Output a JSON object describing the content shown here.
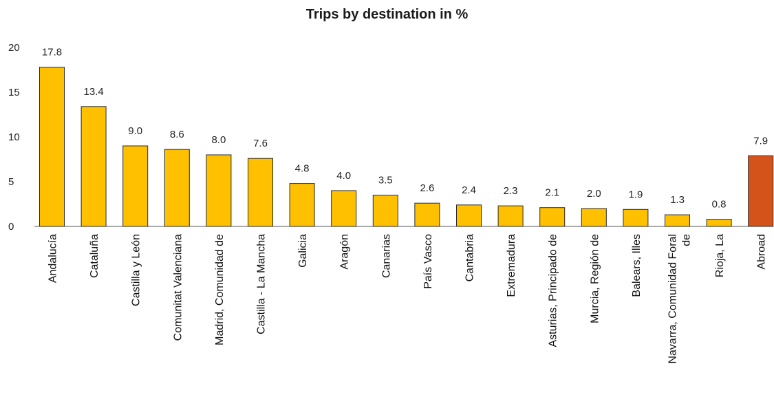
{
  "chart_data": {
    "type": "bar",
    "title": "Trips by destination in %",
    "xlabel": "",
    "ylabel": "",
    "ylim": [
      0,
      20
    ],
    "yticks": [
      0,
      5,
      10,
      15,
      20
    ],
    "grid": false,
    "categories": [
      "Andalucía",
      "Cataluña",
      "Castilla y León",
      "Comunitat Valenciana",
      "Madrid, Comunidad de",
      "Castilla - La Mancha",
      "Galicia",
      "Aragón",
      "Canarias",
      "País Vasco",
      "Cantabria",
      "Extremadura",
      "Asturias, Principado de",
      "Murcia, Región de",
      "Balears, Illes",
      "Navarra, Comunidad Foral de",
      "Rioja, La",
      "Abroad"
    ],
    "category_lines": [
      [
        "Andalucía"
      ],
      [
        "Cataluña"
      ],
      [
        "Castilla y León"
      ],
      [
        "Comunitat Valenciana"
      ],
      [
        "Madrid, Comunidad de"
      ],
      [
        "Castilla - La Mancha"
      ],
      [
        "Galicia"
      ],
      [
        "Aragón"
      ],
      [
        "Canarias"
      ],
      [
        "País Vasco"
      ],
      [
        "Cantabria"
      ],
      [
        "Extremadura"
      ],
      [
        "Asturias, Principado de"
      ],
      [
        "Murcia, Región de"
      ],
      [
        "Balears, Illes"
      ],
      [
        "Navarra, Comunidad Foral",
        "de"
      ],
      [
        "Rioja, La"
      ],
      [
        "Abroad"
      ]
    ],
    "values": [
      17.8,
      13.4,
      9.0,
      8.6,
      8.0,
      7.6,
      4.8,
      4.0,
      3.5,
      2.6,
      2.4,
      2.3,
      2.1,
      2.0,
      1.9,
      1.3,
      0.8,
      7.9
    ],
    "value_labels": [
      "17.8",
      "13.4",
      "9.0",
      "8.6",
      "8.0",
      "7.6",
      "4.8",
      "4.0",
      "3.5",
      "2.6",
      "2.4",
      "2.3",
      "2.1",
      "2.0",
      "1.9",
      "1.3",
      "0.8",
      "7.9"
    ],
    "colors": {
      "default": "#FFC000",
      "highlight": "#D4531A",
      "border": "#2a2a2a"
    },
    "highlight_index": 17
  }
}
